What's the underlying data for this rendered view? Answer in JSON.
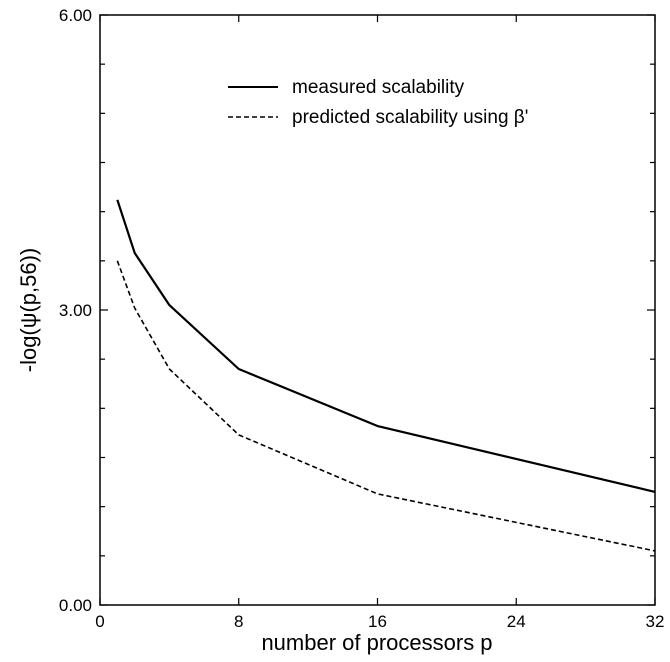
{
  "chart_data": {
    "type": "line",
    "xlabel": "number of processors p",
    "ylabel": "-log(ψ(p,56))",
    "xlim": [
      0,
      32
    ],
    "ylim": [
      0,
      6
    ],
    "x_ticks": [
      {
        "value": 0,
        "label": "0"
      },
      {
        "value": 8,
        "label": "8"
      },
      {
        "value": 16,
        "label": "16"
      },
      {
        "value": 24,
        "label": "24"
      },
      {
        "value": 32,
        "label": "32"
      }
    ],
    "y_ticks": [
      {
        "value": 0,
        "label": "0.00"
      },
      {
        "value": 3,
        "label": "3.00"
      },
      {
        "value": 6,
        "label": "6.00"
      }
    ],
    "grid": false,
    "legend_position": "top-right",
    "series": [
      {
        "name": "measured scalability",
        "style": "solid",
        "color": "#000000",
        "x": [
          1,
          2,
          4,
          8,
          16,
          32
        ],
        "y": [
          4.12,
          3.58,
          3.05,
          2.4,
          1.82,
          1.15
        ]
      },
      {
        "name": "predicted scalability using β'",
        "style": "dashed",
        "color": "#000000",
        "x": [
          1,
          2,
          4,
          8,
          16,
          32
        ],
        "y": [
          3.5,
          3.02,
          2.4,
          1.73,
          1.13,
          0.55
        ]
      }
    ]
  }
}
